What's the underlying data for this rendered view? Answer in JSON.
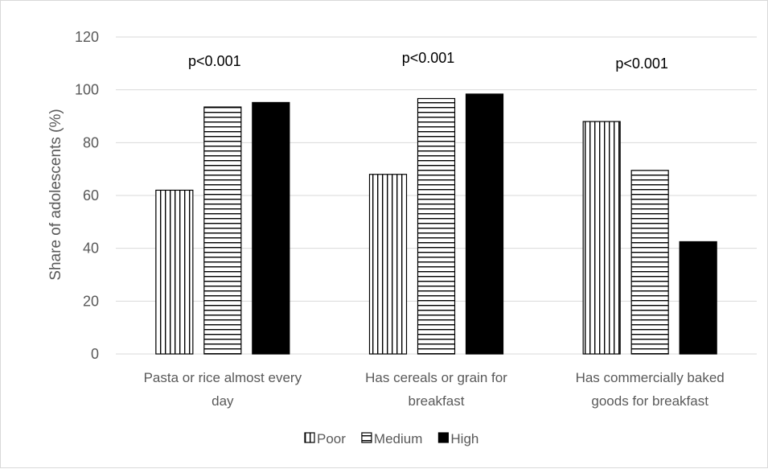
{
  "chart_data": {
    "type": "bar",
    "title": "",
    "xlabel": "",
    "ylabel": "Share of adolescents (%)",
    "ylim": [
      0,
      120
    ],
    "yticks": [
      0,
      20,
      40,
      60,
      80,
      100,
      120
    ],
    "grid": true,
    "legend_position": "bottom",
    "categories": [
      [
        "Pasta or rice almost every",
        "day"
      ],
      [
        "Has cereals or grain for",
        "breakfast"
      ],
      [
        "Has commercially baked",
        "goods for breakfast"
      ]
    ],
    "annotations": [
      "p<0.001",
      "p<0.001",
      "p<0.001"
    ],
    "series": [
      {
        "name": "Poor",
        "pattern": "vertical-stripes",
        "values": [
          62,
          68,
          88
        ]
      },
      {
        "name": "Medium",
        "pattern": "horizontal-stripes",
        "values": [
          93.5,
          96.7,
          69.5
        ]
      },
      {
        "name": "High",
        "pattern": "solid",
        "values": [
          95.2,
          98.4,
          42.5
        ]
      }
    ],
    "colors": {
      "bar_stroke": "#000000",
      "grid": "#d9d9d9",
      "axis_text": "#595959",
      "solid": "#000000"
    }
  }
}
